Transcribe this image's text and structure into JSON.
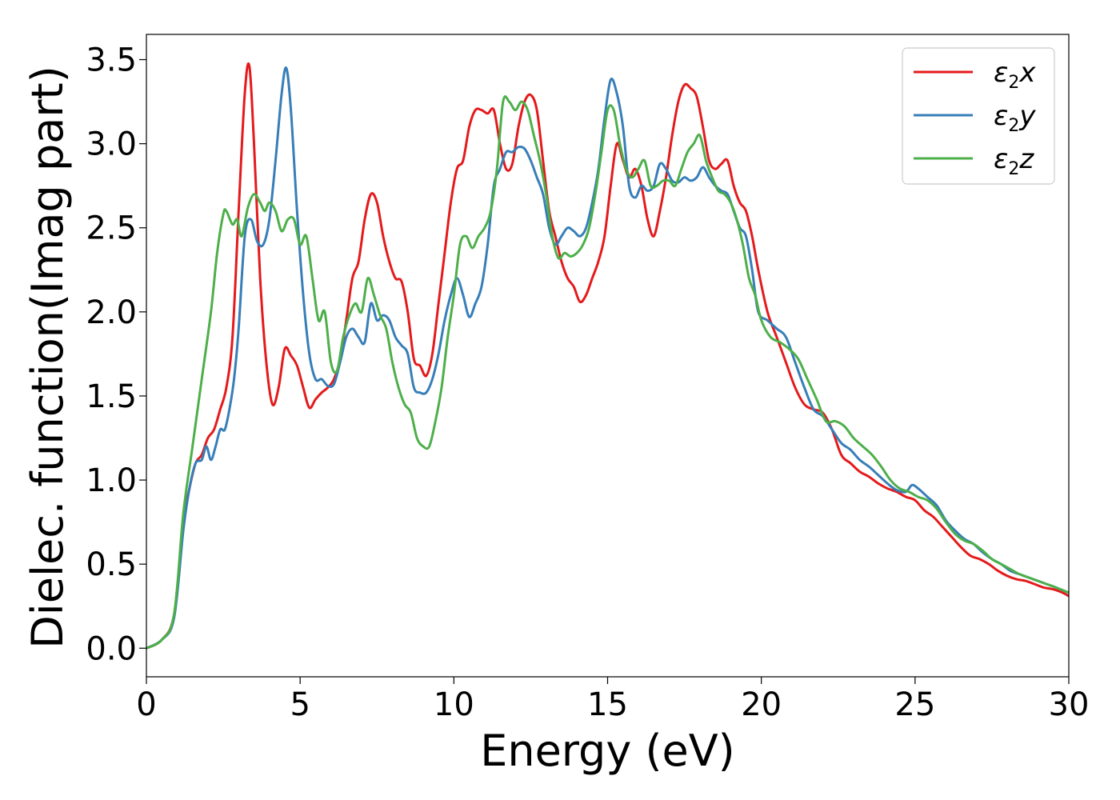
{
  "chart_data": {
    "type": "line",
    "title": "",
    "xlabel": "Energy (eV)",
    "ylabel": "Dielec. function(Imag part)",
    "xlim": [
      0,
      30
    ],
    "ylim": [
      -0.17,
      3.65
    ],
    "xticks": [
      "0",
      "5",
      "10",
      "15",
      "20",
      "25",
      "30"
    ],
    "yticks": [
      "0.0",
      "0.5",
      "1.0",
      "1.5",
      "2.0",
      "2.5",
      "3.0",
      "3.5"
    ],
    "grid": false,
    "legend_position": "top-right",
    "series": [
      {
        "name": "ε2x",
        "legend_main": "ε",
        "legend_sub": "2",
        "legend_tail": "x",
        "color": "#e41a1c",
        "x": [
          0,
          0.5,
          0.9,
          1.2,
          1.4,
          1.6,
          1.8,
          2.0,
          2.2,
          2.4,
          2.6,
          2.8,
          3.0,
          3.2,
          3.35,
          3.5,
          3.7,
          3.9,
          4.1,
          4.3,
          4.5,
          4.7,
          4.9,
          5.1,
          5.3,
          5.5,
          5.7,
          5.9,
          6.1,
          6.3,
          6.5,
          6.7,
          6.9,
          7.1,
          7.3,
          7.5,
          7.7,
          7.9,
          8.1,
          8.3,
          8.5,
          8.7,
          8.9,
          9.1,
          9.3,
          9.5,
          9.7,
          9.9,
          10.1,
          10.3,
          10.5,
          10.7,
          10.9,
          11.1,
          11.3,
          11.5,
          11.7,
          11.9,
          12.1,
          12.3,
          12.5,
          12.7,
          12.9,
          13.1,
          13.3,
          13.5,
          13.7,
          13.9,
          14.1,
          14.3,
          14.5,
          14.7,
          14.9,
          15.1,
          15.3,
          15.5,
          15.7,
          15.9,
          16.1,
          16.3,
          16.5,
          16.7,
          16.9,
          17.1,
          17.3,
          17.5,
          17.7,
          17.9,
          18.1,
          18.3,
          18.5,
          18.7,
          18.9,
          19.1,
          19.3,
          19.5,
          19.7,
          19.9,
          20.2,
          20.5,
          20.8,
          21.1,
          21.4,
          21.7,
          22.0,
          22.3,
          22.6,
          22.9,
          23.2,
          23.5,
          23.8,
          24.1,
          24.4,
          24.7,
          25.0,
          25.3,
          25.6,
          25.9,
          26.2,
          26.5,
          26.8,
          27.1,
          27.4,
          27.7,
          28.0,
          28.3,
          28.6,
          28.9,
          29.2,
          29.5,
          29.8,
          30.0
        ],
        "y": [
          0.0,
          0.05,
          0.2,
          0.75,
          0.95,
          1.1,
          1.15,
          1.25,
          1.3,
          1.42,
          1.55,
          1.85,
          2.6,
          3.3,
          3.46,
          3.0,
          2.2,
          1.7,
          1.45,
          1.55,
          1.78,
          1.74,
          1.68,
          1.55,
          1.43,
          1.48,
          1.52,
          1.55,
          1.6,
          1.72,
          1.95,
          2.2,
          2.3,
          2.55,
          2.7,
          2.65,
          2.45,
          2.3,
          2.2,
          2.18,
          2.0,
          1.72,
          1.68,
          1.62,
          1.75,
          2.05,
          2.35,
          2.65,
          2.85,
          2.9,
          3.1,
          3.2,
          3.2,
          3.18,
          3.2,
          3.0,
          2.85,
          2.88,
          3.1,
          3.25,
          3.29,
          3.2,
          2.9,
          2.6,
          2.45,
          2.3,
          2.2,
          2.15,
          2.06,
          2.1,
          2.2,
          2.3,
          2.45,
          2.75,
          3.0,
          2.9,
          2.8,
          2.85,
          2.75,
          2.55,
          2.45,
          2.6,
          2.8,
          3.05,
          3.25,
          3.35,
          3.33,
          3.28,
          3.1,
          2.9,
          2.85,
          2.88,
          2.9,
          2.75,
          2.65,
          2.6,
          2.45,
          2.25,
          2.0,
          1.85,
          1.7,
          1.55,
          1.45,
          1.42,
          1.4,
          1.3,
          1.15,
          1.1,
          1.05,
          1.02,
          0.98,
          0.95,
          0.93,
          0.9,
          0.88,
          0.82,
          0.78,
          0.72,
          0.66,
          0.6,
          0.55,
          0.53,
          0.5,
          0.46,
          0.43,
          0.41,
          0.4,
          0.38,
          0.36,
          0.35,
          0.33,
          0.31
        ]
      },
      {
        "name": "ε2y",
        "legend_main": "ε",
        "legend_sub": "2",
        "legend_tail": "y",
        "color": "#377eb8",
        "x": [
          0,
          0.5,
          0.9,
          1.2,
          1.4,
          1.6,
          1.8,
          1.95,
          2.1,
          2.25,
          2.4,
          2.55,
          2.7,
          2.85,
          3.0,
          3.2,
          3.4,
          3.6,
          3.8,
          4.0,
          4.2,
          4.4,
          4.55,
          4.7,
          4.9,
          5.1,
          5.3,
          5.5,
          5.7,
          5.9,
          6.1,
          6.3,
          6.5,
          6.7,
          6.9,
          7.1,
          7.3,
          7.5,
          7.7,
          7.9,
          8.1,
          8.3,
          8.5,
          8.7,
          8.9,
          9.1,
          9.3,
          9.5,
          9.7,
          9.9,
          10.1,
          10.3,
          10.5,
          10.7,
          10.9,
          11.1,
          11.3,
          11.5,
          11.7,
          11.9,
          12.1,
          12.3,
          12.5,
          12.7,
          12.9,
          13.1,
          13.3,
          13.5,
          13.7,
          13.9,
          14.1,
          14.3,
          14.5,
          14.7,
          14.9,
          15.1,
          15.3,
          15.5,
          15.7,
          15.9,
          16.1,
          16.3,
          16.5,
          16.7,
          16.9,
          17.1,
          17.3,
          17.5,
          17.7,
          17.9,
          18.1,
          18.3,
          18.5,
          18.7,
          18.9,
          19.1,
          19.3,
          19.5,
          19.7,
          19.9,
          20.2,
          20.5,
          20.8,
          21.1,
          21.4,
          21.7,
          22.0,
          22.3,
          22.6,
          22.9,
          23.2,
          23.5,
          23.8,
          24.1,
          24.4,
          24.7,
          24.9,
          25.1,
          25.4,
          25.7,
          26.0,
          26.3,
          26.6,
          26.9,
          27.2,
          27.5,
          27.8,
          28.1,
          28.4,
          28.7,
          29.0,
          29.3,
          29.6,
          30.0
        ],
        "y": [
          0.0,
          0.05,
          0.18,
          0.7,
          0.95,
          1.1,
          1.12,
          1.2,
          1.12,
          1.2,
          1.3,
          1.3,
          1.42,
          1.6,
          1.9,
          2.45,
          2.55,
          2.42,
          2.4,
          2.55,
          2.9,
          3.3,
          3.45,
          3.2,
          2.6,
          2.1,
          1.75,
          1.6,
          1.6,
          1.56,
          1.57,
          1.7,
          1.85,
          1.9,
          1.85,
          1.82,
          2.05,
          1.95,
          1.98,
          1.95,
          1.85,
          1.8,
          1.75,
          1.55,
          1.52,
          1.52,
          1.6,
          1.75,
          1.95,
          2.1,
          2.2,
          2.1,
          1.97,
          2.05,
          2.15,
          2.4,
          2.75,
          2.85,
          2.95,
          2.95,
          2.98,
          2.97,
          2.9,
          2.8,
          2.7,
          2.5,
          2.4,
          2.45,
          2.5,
          2.48,
          2.45,
          2.5,
          2.65,
          2.85,
          3.15,
          3.38,
          3.3,
          3.1,
          2.75,
          2.68,
          2.75,
          2.72,
          2.75,
          2.88,
          2.85,
          2.78,
          2.77,
          2.8,
          2.78,
          2.8,
          2.86,
          2.8,
          2.75,
          2.72,
          2.7,
          2.6,
          2.5,
          2.45,
          2.25,
          2.0,
          1.95,
          1.9,
          1.85,
          1.7,
          1.55,
          1.42,
          1.38,
          1.3,
          1.22,
          1.18,
          1.12,
          1.08,
          1.03,
          0.98,
          0.94,
          0.93,
          0.97,
          0.95,
          0.9,
          0.85,
          0.76,
          0.7,
          0.65,
          0.62,
          0.57,
          0.53,
          0.5,
          0.46,
          0.44,
          0.42,
          0.4,
          0.38,
          0.36,
          0.33
        ]
      },
      {
        "name": "ε2z",
        "legend_main": "ε",
        "legend_sub": "2",
        "legend_tail": "z",
        "color": "#4daf4a",
        "x": [
          0,
          0.5,
          0.9,
          1.2,
          1.5,
          1.8,
          2.1,
          2.3,
          2.5,
          2.6,
          2.8,
          2.95,
          3.1,
          3.3,
          3.5,
          3.7,
          3.85,
          4.0,
          4.2,
          4.4,
          4.6,
          4.8,
          5.0,
          5.2,
          5.4,
          5.6,
          5.8,
          6.0,
          6.2,
          6.4,
          6.6,
          6.8,
          7.0,
          7.2,
          7.4,
          7.6,
          7.8,
          8.0,
          8.2,
          8.4,
          8.6,
          8.8,
          9.0,
          9.2,
          9.4,
          9.6,
          9.8,
          10.0,
          10.2,
          10.4,
          10.6,
          10.8,
          11.0,
          11.2,
          11.4,
          11.6,
          11.8,
          12.0,
          12.2,
          12.4,
          12.6,
          12.8,
          13.0,
          13.2,
          13.4,
          13.6,
          13.8,
          14.0,
          14.2,
          14.4,
          14.6,
          14.8,
          15.0,
          15.2,
          15.4,
          15.6,
          15.8,
          16.0,
          16.2,
          16.4,
          16.6,
          16.8,
          17.0,
          17.2,
          17.4,
          17.6,
          17.8,
          18.0,
          18.2,
          18.4,
          18.6,
          18.8,
          19.0,
          19.2,
          19.4,
          19.6,
          19.8,
          20.0,
          20.3,
          20.6,
          20.9,
          21.2,
          21.5,
          21.8,
          22.1,
          22.4,
          22.7,
          23.0,
          23.3,
          23.6,
          23.9,
          24.2,
          24.5,
          24.8,
          25.1,
          25.4,
          25.7,
          26.0,
          26.3,
          26.6,
          26.9,
          27.2,
          27.5,
          27.8,
          28.1,
          28.4,
          28.7,
          29.0,
          29.3,
          29.6,
          30.0
        ],
        "y": [
          0.0,
          0.05,
          0.2,
          0.8,
          1.2,
          1.6,
          2.0,
          2.35,
          2.58,
          2.6,
          2.52,
          2.55,
          2.45,
          2.62,
          2.7,
          2.65,
          2.6,
          2.65,
          2.6,
          2.48,
          2.55,
          2.55,
          2.4,
          2.45,
          2.2,
          1.95,
          2.0,
          1.7,
          1.65,
          1.85,
          1.98,
          2.05,
          2.0,
          2.2,
          2.1,
          1.98,
          1.9,
          1.7,
          1.55,
          1.45,
          1.4,
          1.25,
          1.2,
          1.2,
          1.35,
          1.55,
          1.85,
          2.1,
          2.4,
          2.45,
          2.38,
          2.45,
          2.5,
          2.6,
          2.85,
          3.25,
          3.25,
          3.2,
          3.25,
          3.2,
          3.05,
          2.9,
          2.7,
          2.45,
          2.32,
          2.35,
          2.33,
          2.35,
          2.4,
          2.5,
          2.7,
          2.95,
          3.2,
          3.2,
          3.0,
          2.85,
          2.8,
          2.85,
          2.9,
          2.75,
          2.75,
          2.78,
          2.78,
          2.75,
          2.85,
          2.95,
          3.0,
          3.05,
          2.9,
          2.8,
          2.72,
          2.7,
          2.65,
          2.55,
          2.4,
          2.2,
          2.1,
          1.95,
          1.85,
          1.82,
          1.78,
          1.72,
          1.6,
          1.48,
          1.35,
          1.35,
          1.32,
          1.25,
          1.2,
          1.15,
          1.08,
          1.0,
          0.95,
          0.93,
          0.9,
          0.88,
          0.83,
          0.75,
          0.68,
          0.64,
          0.62,
          0.58,
          0.53,
          0.5,
          0.47,
          0.44,
          0.42,
          0.4,
          0.38,
          0.36,
          0.33
        ]
      }
    ]
  }
}
